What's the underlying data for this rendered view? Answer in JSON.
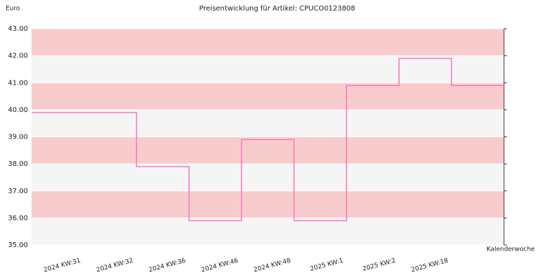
{
  "chart_data": {
    "type": "step",
    "title": "Preisentwicklung für Artikel: CPUCO0123808",
    "y_label": "Euro",
    "x_label": "Kalenderwoche",
    "categories": [
      "2024 KW:31",
      "2024 KW:32",
      "2024 KW:36",
      "2024 KW:46",
      "2024 KW:48",
      "2025 KW:1",
      "2025 KW:2",
      "2025 KW:18"
    ],
    "values": [
      39.9,
      37.9,
      35.9,
      38.9,
      35.9,
      40.9,
      41.9,
      40.9
    ],
    "color": "#ff77c0",
    "band_colors": [
      "#f8cccc",
      "#f5f5f5"
    ],
    "ylim": [
      35,
      43
    ],
    "yticks": [
      {
        "value": 35,
        "label": "35.00"
      },
      {
        "value": 36,
        "label": "36.00"
      },
      {
        "value": 37,
        "label": "37.00"
      },
      {
        "value": 38,
        "label": "38.00"
      },
      {
        "value": 39,
        "label": "39.00"
      },
      {
        "value": 40,
        "label": "40.00"
      },
      {
        "value": 41,
        "label": "41.00"
      },
      {
        "value": 42,
        "label": "42.00"
      },
      {
        "value": 43,
        "label": "43.00"
      }
    ]
  }
}
